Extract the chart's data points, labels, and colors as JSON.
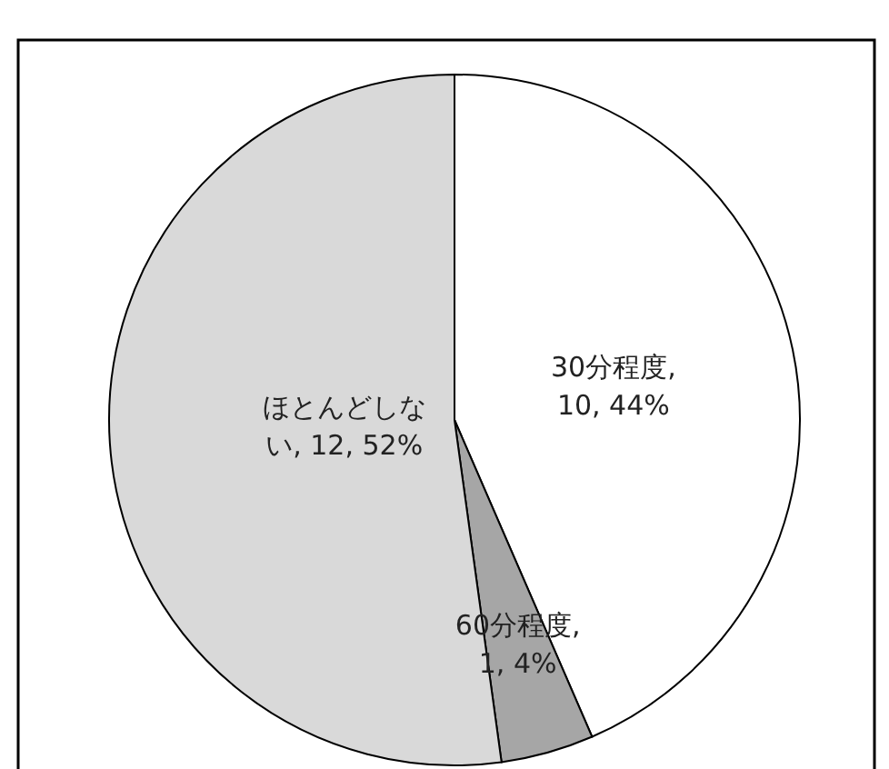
{
  "chart_data": {
    "type": "pie",
    "categories": [
      "30分程度",
      "60分程度",
      "ほとんどしない"
    ],
    "values": [
      10,
      1,
      12
    ],
    "colors": [
      "#ffffff",
      "#a6a6a6",
      "#d9d9d9"
    ],
    "value_labels": [
      ", 10, 44%",
      ", 1, 4%",
      ", 12, 52%"
    ]
  }
}
